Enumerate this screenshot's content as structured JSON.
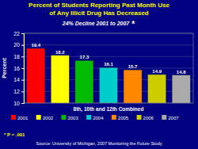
{
  "chart_data": {
    "type": "bar",
    "title": [
      "Percent of Students Reporting Past Month Use",
      "of Any Illicit Drug Has Decreased"
    ],
    "subtitle": "24% Decline 2001 to 2007",
    "categories": [
      "2001",
      "2002",
      "2003",
      "2004",
      "2005",
      "2006",
      "2007"
    ],
    "values": [
      19.4,
      18.2,
      17.3,
      16.1,
      15.7,
      14.9,
      14.8
    ],
    "colors": [
      "#FF0000",
      "#FFFF00",
      "#00BB00",
      "#00CCCC",
      "#FF8800",
      "#CCCC00",
      "#AAAAAA"
    ],
    "xlabel": "8th, 10th and 12th Combined",
    "ylabel": "Percent",
    "ylim": [
      10,
      22
    ],
    "yticks": [
      10,
      12,
      14,
      16,
      18,
      20,
      22
    ],
    "grid": true,
    "data_labels": true,
    "tick_labels": "y",
    "legend": "bottom",
    "annotations": [
      "*",
      "* P = .001",
      "Source: University of Michigan, 2007 Monitoring the Future Study"
    ]
  }
}
